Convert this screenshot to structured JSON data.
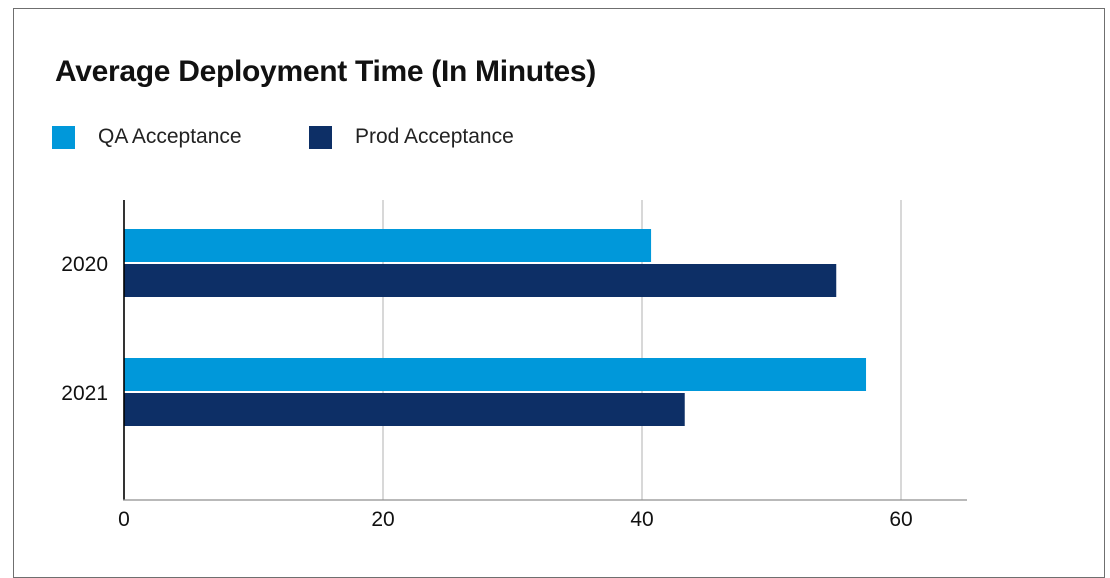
{
  "chart_data": {
    "type": "bar",
    "orientation": "horizontal",
    "title": "Average Deployment Time (In Minutes)",
    "categories": [
      "2020",
      "2021"
    ],
    "series": [
      {
        "name": "QA Acceptance",
        "values": [
          40.7,
          57.3
        ],
        "color": "#0098da"
      },
      {
        "name": "Prod Acceptance",
        "values": [
          55.0,
          43.3
        ],
        "color": "#0d2f66"
      }
    ],
    "xlim": [
      0,
      65
    ],
    "xticks": [
      "0",
      "20",
      "40",
      "60"
    ],
    "xtick_values": [
      0,
      20,
      40,
      60
    ],
    "grid": true,
    "legend_position": "top-left"
  }
}
